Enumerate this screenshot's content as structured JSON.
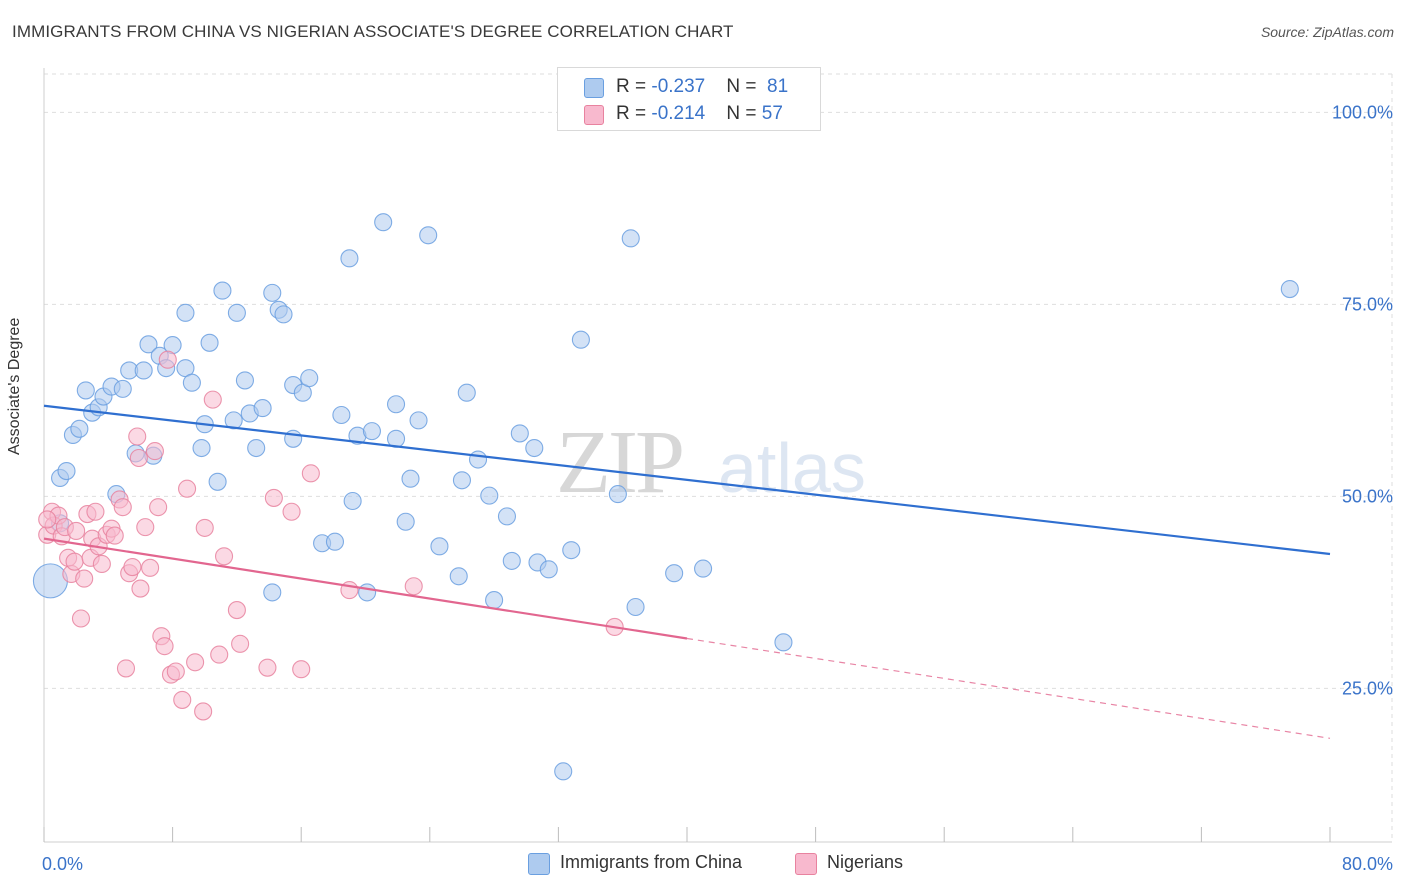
{
  "header": {
    "title": "IMMIGRANTS FROM CHINA VS NIGERIAN ASSOCIATE'S DEGREE CORRELATION CHART",
    "source": "Source: ZipAtlas.com"
  },
  "watermark": {
    "part1": "ZIP",
    "part2": "atlas"
  },
  "stats_legend": [
    {
      "r_label": "R = ",
      "r_value": "-0.237",
      "n_label": "N = ",
      "n_value": "81",
      "color": "#aecbef"
    },
    {
      "r_label": "R = ",
      "r_value": "-0.214",
      "n_label": "N = ",
      "n_value": "57",
      "color": "#f8b9ce"
    }
  ],
  "bottom_legend": [
    {
      "label": "Immigrants from China",
      "color": "#aecbef"
    },
    {
      "label": "Nigerians",
      "color": "#f8b9ce"
    }
  ],
  "chart_data": {
    "type": "scatter",
    "title": "IMMIGRANTS FROM CHINA VS NIGERIAN ASSOCIATE'S DEGREE CORRELATION CHART",
    "xlabel": "",
    "ylabel": "Associate's Degree",
    "xlim": [
      0,
      80
    ],
    "ylim": [
      5,
      105
    ],
    "x_tick_labels": [
      "0.0%",
      "80.0%"
    ],
    "y_ticks": [
      25,
      50,
      75,
      100
    ],
    "y_tick_labels": [
      "25.0%",
      "50.0%",
      "75.0%",
      "100.0%"
    ],
    "grid": true,
    "series": [
      {
        "name": "Immigrants from China",
        "color": "#6a9fe0",
        "fill": "#aecbef",
        "points": [
          [
            0.4,
            39.0
          ],
          [
            1.0,
            52.4
          ],
          [
            1.4,
            53.3
          ],
          [
            1.8,
            58.0
          ],
          [
            2.2,
            58.8
          ],
          [
            2.6,
            63.8
          ],
          [
            3.0,
            60.9
          ],
          [
            3.4,
            61.6
          ],
          [
            3.7,
            63.0
          ],
          [
            4.2,
            64.3
          ],
          [
            4.9,
            64.0
          ],
          [
            5.3,
            66.4
          ],
          [
            5.7,
            55.6
          ],
          [
            6.2,
            66.4
          ],
          [
            6.5,
            69.8
          ],
          [
            6.8,
            55.3
          ],
          [
            7.2,
            68.3
          ],
          [
            7.6,
            66.7
          ],
          [
            8.0,
            69.7
          ],
          [
            8.8,
            66.7
          ],
          [
            8.8,
            73.9
          ],
          [
            9.2,
            64.8
          ],
          [
            9.8,
            56.3
          ],
          [
            10.0,
            59.4
          ],
          [
            10.3,
            70.0
          ],
          [
            10.8,
            51.9
          ],
          [
            11.1,
            76.8
          ],
          [
            11.8,
            59.9
          ],
          [
            12.0,
            73.9
          ],
          [
            12.5,
            65.1
          ],
          [
            12.8,
            60.8
          ],
          [
            13.2,
            56.3
          ],
          [
            13.6,
            61.5
          ],
          [
            14.2,
            37.5
          ],
          [
            14.2,
            76.5
          ],
          [
            14.6,
            74.3
          ],
          [
            14.9,
            73.7
          ],
          [
            15.5,
            57.5
          ],
          [
            15.5,
            64.5
          ],
          [
            16.1,
            63.5
          ],
          [
            16.5,
            65.4
          ],
          [
            17.3,
            43.9
          ],
          [
            18.1,
            44.1
          ],
          [
            18.5,
            60.6
          ],
          [
            19.0,
            81.0
          ],
          [
            19.2,
            49.4
          ],
          [
            19.5,
            57.9
          ],
          [
            20.1,
            37.5
          ],
          [
            20.4,
            58.5
          ],
          [
            21.1,
            85.7
          ],
          [
            21.9,
            62.0
          ],
          [
            21.9,
            57.5
          ],
          [
            22.5,
            46.7
          ],
          [
            22.8,
            52.3
          ],
          [
            23.3,
            59.9
          ],
          [
            23.9,
            84.0
          ],
          [
            24.6,
            43.5
          ],
          [
            25.8,
            39.6
          ],
          [
            26.0,
            52.1
          ],
          [
            26.3,
            63.5
          ],
          [
            27.0,
            54.8
          ],
          [
            27.7,
            50.1
          ],
          [
            28.0,
            36.5
          ],
          [
            28.8,
            47.4
          ],
          [
            29.1,
            41.6
          ],
          [
            29.6,
            58.2
          ],
          [
            30.5,
            56.3
          ],
          [
            30.7,
            41.4
          ],
          [
            31.4,
            40.5
          ],
          [
            32.3,
            14.2
          ],
          [
            32.8,
            43.0
          ],
          [
            33.4,
            70.4
          ],
          [
            35.7,
            50.3
          ],
          [
            36.5,
            83.6
          ],
          [
            36.8,
            35.6
          ],
          [
            39.2,
            40.0
          ],
          [
            41.0,
            40.6
          ],
          [
            46.0,
            31.0
          ],
          [
            77.5,
            77.0
          ],
          [
            1.0,
            46.5
          ],
          [
            4.5,
            50.3
          ]
        ],
        "trendline": {
          "x": [
            0,
            80
          ],
          "y": [
            61.8,
            42.5
          ]
        }
      },
      {
        "name": "Nigerians",
        "color": "#e8829f",
        "fill": "#f8b9ce",
        "points": [
          [
            0.2,
            45.0
          ],
          [
            0.5,
            48.0
          ],
          [
            0.6,
            46.2
          ],
          [
            0.9,
            47.5
          ],
          [
            1.1,
            44.8
          ],
          [
            1.3,
            46.0
          ],
          [
            1.5,
            42.0
          ],
          [
            1.7,
            39.9
          ],
          [
            1.9,
            41.5
          ],
          [
            2.0,
            45.5
          ],
          [
            2.3,
            34.1
          ],
          [
            2.5,
            39.3
          ],
          [
            2.7,
            47.7
          ],
          [
            2.9,
            42.0
          ],
          [
            3.0,
            44.5
          ],
          [
            3.2,
            48.0
          ],
          [
            3.4,
            43.5
          ],
          [
            3.6,
            41.2
          ],
          [
            3.9,
            45.0
          ],
          [
            4.2,
            45.8
          ],
          [
            4.4,
            44.9
          ],
          [
            4.7,
            49.6
          ],
          [
            4.9,
            48.6
          ],
          [
            5.1,
            27.6
          ],
          [
            5.3,
            40.0
          ],
          [
            5.5,
            40.8
          ],
          [
            5.8,
            57.8
          ],
          [
            5.9,
            55.0
          ],
          [
            6.0,
            38.0
          ],
          [
            6.3,
            46.0
          ],
          [
            6.6,
            40.7
          ],
          [
            6.9,
            55.9
          ],
          [
            7.1,
            48.6
          ],
          [
            7.3,
            31.8
          ],
          [
            7.5,
            30.5
          ],
          [
            7.7,
            67.8
          ],
          [
            7.9,
            26.8
          ],
          [
            8.2,
            27.2
          ],
          [
            8.6,
            23.5
          ],
          [
            8.9,
            51.0
          ],
          [
            9.4,
            28.4
          ],
          [
            9.9,
            22.0
          ],
          [
            10.0,
            45.9
          ],
          [
            10.5,
            62.6
          ],
          [
            10.9,
            29.4
          ],
          [
            11.2,
            42.2
          ],
          [
            12.0,
            35.2
          ],
          [
            12.2,
            30.8
          ],
          [
            13.9,
            27.7
          ],
          [
            14.3,
            49.8
          ],
          [
            15.4,
            48.0
          ],
          [
            16.0,
            27.5
          ],
          [
            16.6,
            53.0
          ],
          [
            19.0,
            37.8
          ],
          [
            23.0,
            38.3
          ],
          [
            35.5,
            33.0
          ],
          [
            0.2,
            47.0
          ]
        ],
        "trendline": {
          "x": [
            0,
            40
          ],
          "y": [
            44.5,
            31.5
          ]
        },
        "trendline_extension": {
          "x": [
            40,
            80
          ],
          "y": [
            31.5,
            18.5
          ]
        }
      }
    ]
  }
}
